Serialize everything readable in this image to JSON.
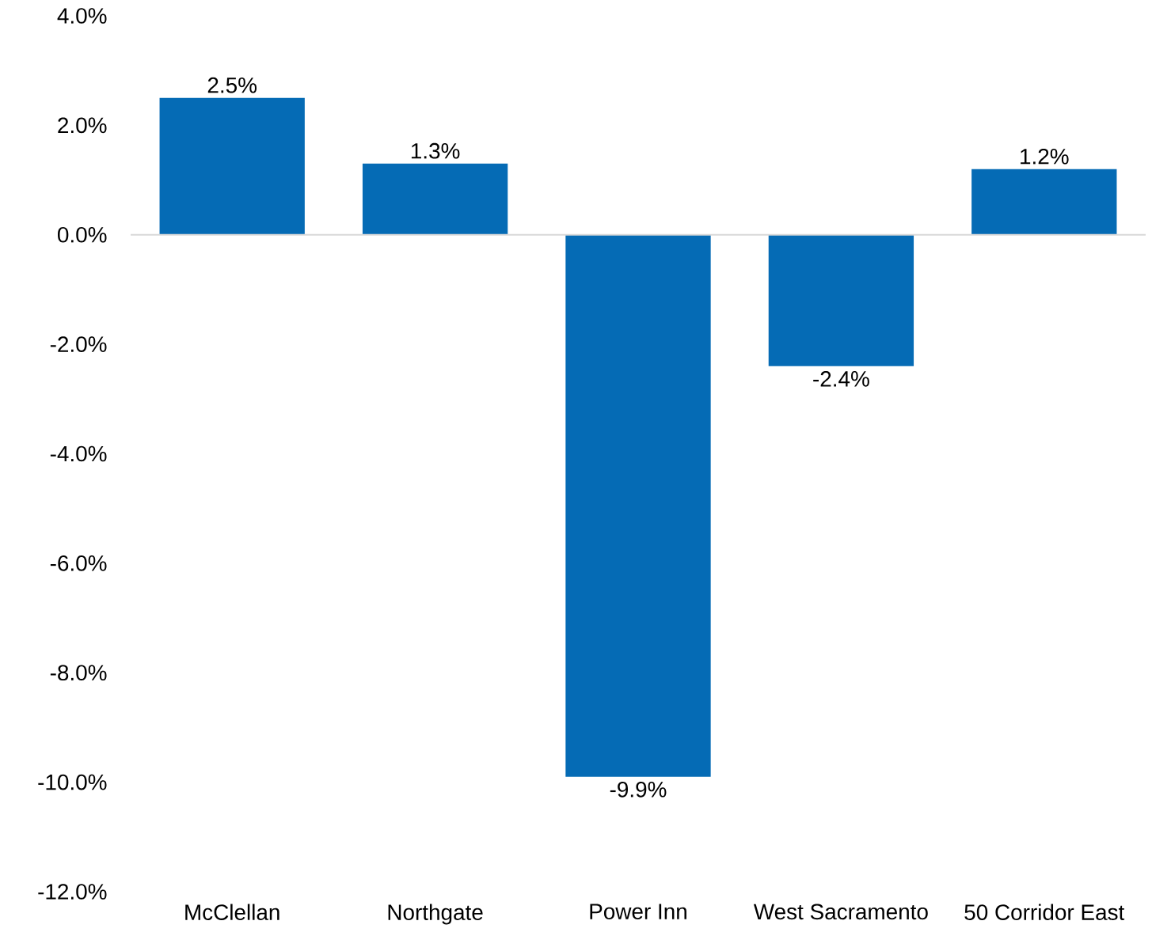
{
  "chart_data": {
    "type": "bar",
    "categories": [
      "McClellan",
      "Northgate",
      "Power Inn",
      "West Sacramento",
      "50 Corridor East"
    ],
    "values": [
      2.5,
      1.3,
      -9.9,
      -2.4,
      1.2
    ],
    "value_labels": [
      "2.5%",
      "1.3%",
      "-9.9%",
      "-2.4%",
      "1.2%"
    ],
    "color": "#056bb5",
    "ylim": [
      -12,
      4
    ],
    "yticks": [
      {
        "value": -12,
        "label": "-12.0%"
      },
      {
        "value": -10,
        "label": "-10.0%"
      },
      {
        "value": -8,
        "label": "-8.0%"
      },
      {
        "value": -6,
        "label": "-6.0%"
      },
      {
        "value": -4,
        "label": "-4.0%"
      },
      {
        "value": -2,
        "label": "-2.0%"
      },
      {
        "value": 0,
        "label": "0.0%"
      },
      {
        "value": 2,
        "label": "2.0%"
      },
      {
        "value": 4,
        "label": "4.0%"
      }
    ],
    "ref_lines": [
      {
        "axis": "y",
        "value": 0,
        "color": "#d9d9d9"
      }
    ]
  }
}
